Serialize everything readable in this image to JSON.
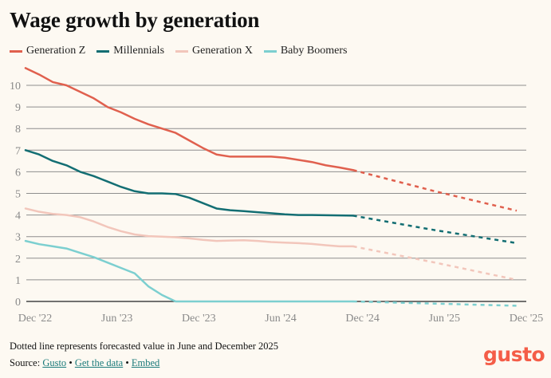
{
  "colors": {
    "gen_z": "#e0604e",
    "millennials": "#136e73",
    "gen_x": "#f2c6bb",
    "boomers": "#7ccfd0",
    "grid": "#8e8e8e",
    "axis_zero": "#444444",
    "link": "#1b7b7b",
    "brand": "#f45d48"
  },
  "footer": {
    "note": "Dotted line represents forecasted value in June and December 2025",
    "source_label": "Source:",
    "links": [
      "Gusto",
      "Get the data",
      "Embed"
    ],
    "separator": "•",
    "logo": "gusto"
  },
  "chart_data": {
    "type": "line",
    "title": "Wage growth by generation",
    "xlabel": "",
    "ylabel": "",
    "ylim": [
      0,
      10.8
    ],
    "yticks": [
      0,
      1,
      2,
      3,
      4,
      5,
      6,
      7,
      8,
      9,
      10
    ],
    "xticks": [
      "Dec '22",
      "Jun '23",
      "Dec '23",
      "Jun '24",
      "Dec '24",
      "Jun '25",
      "Dec '25"
    ],
    "x_month_range": [
      0,
      36
    ],
    "grid": true,
    "legend": "top-left",
    "forecast_note": "Forecast segments (dashed) run from Dec '24 to Jun '25 and Dec '25",
    "series": [
      {
        "name": "Generation Z",
        "key": "gen_z",
        "actual": [
          10.8,
          10.5,
          10.15,
          10.0,
          9.7,
          9.4,
          9.0,
          8.75,
          8.45,
          8.2,
          8.0,
          7.8,
          7.45,
          7.1,
          6.8,
          6.7,
          6.7,
          6.7,
          6.7,
          6.65,
          6.55,
          6.45,
          6.3,
          6.2,
          6.08
        ],
        "forecast": [
          6.08,
          5.1,
          4.2
        ]
      },
      {
        "name": "Millennials",
        "key": "millennials",
        "actual": [
          7.0,
          6.8,
          6.5,
          6.3,
          6.0,
          5.8,
          5.55,
          5.3,
          5.1,
          5.0,
          5.0,
          4.97,
          4.8,
          4.55,
          4.3,
          4.22,
          4.18,
          4.13,
          4.08,
          4.03,
          4.0,
          4.0,
          3.99,
          3.98,
          3.97
        ],
        "forecast": [
          3.97,
          3.3,
          2.7
        ]
      },
      {
        "name": "Generation X",
        "key": "gen_x",
        "actual": [
          4.3,
          4.15,
          4.05,
          4.0,
          3.9,
          3.7,
          3.45,
          3.25,
          3.1,
          3.02,
          3.0,
          2.97,
          2.92,
          2.85,
          2.8,
          2.82,
          2.83,
          2.8,
          2.75,
          2.72,
          2.7,
          2.66,
          2.6,
          2.55,
          2.55
        ],
        "forecast": [
          2.55,
          1.8,
          1.0
        ]
      },
      {
        "name": "Baby Boomers",
        "key": "boomers",
        "actual": [
          2.8,
          2.65,
          2.55,
          2.45,
          2.25,
          2.05,
          1.8,
          1.55,
          1.3,
          0.7,
          0.3,
          0,
          0,
          0,
          0,
          0,
          0,
          0,
          0,
          0,
          0,
          0,
          0,
          0,
          0
        ],
        "forecast": [
          0,
          -0.1,
          -0.2
        ]
      }
    ]
  }
}
